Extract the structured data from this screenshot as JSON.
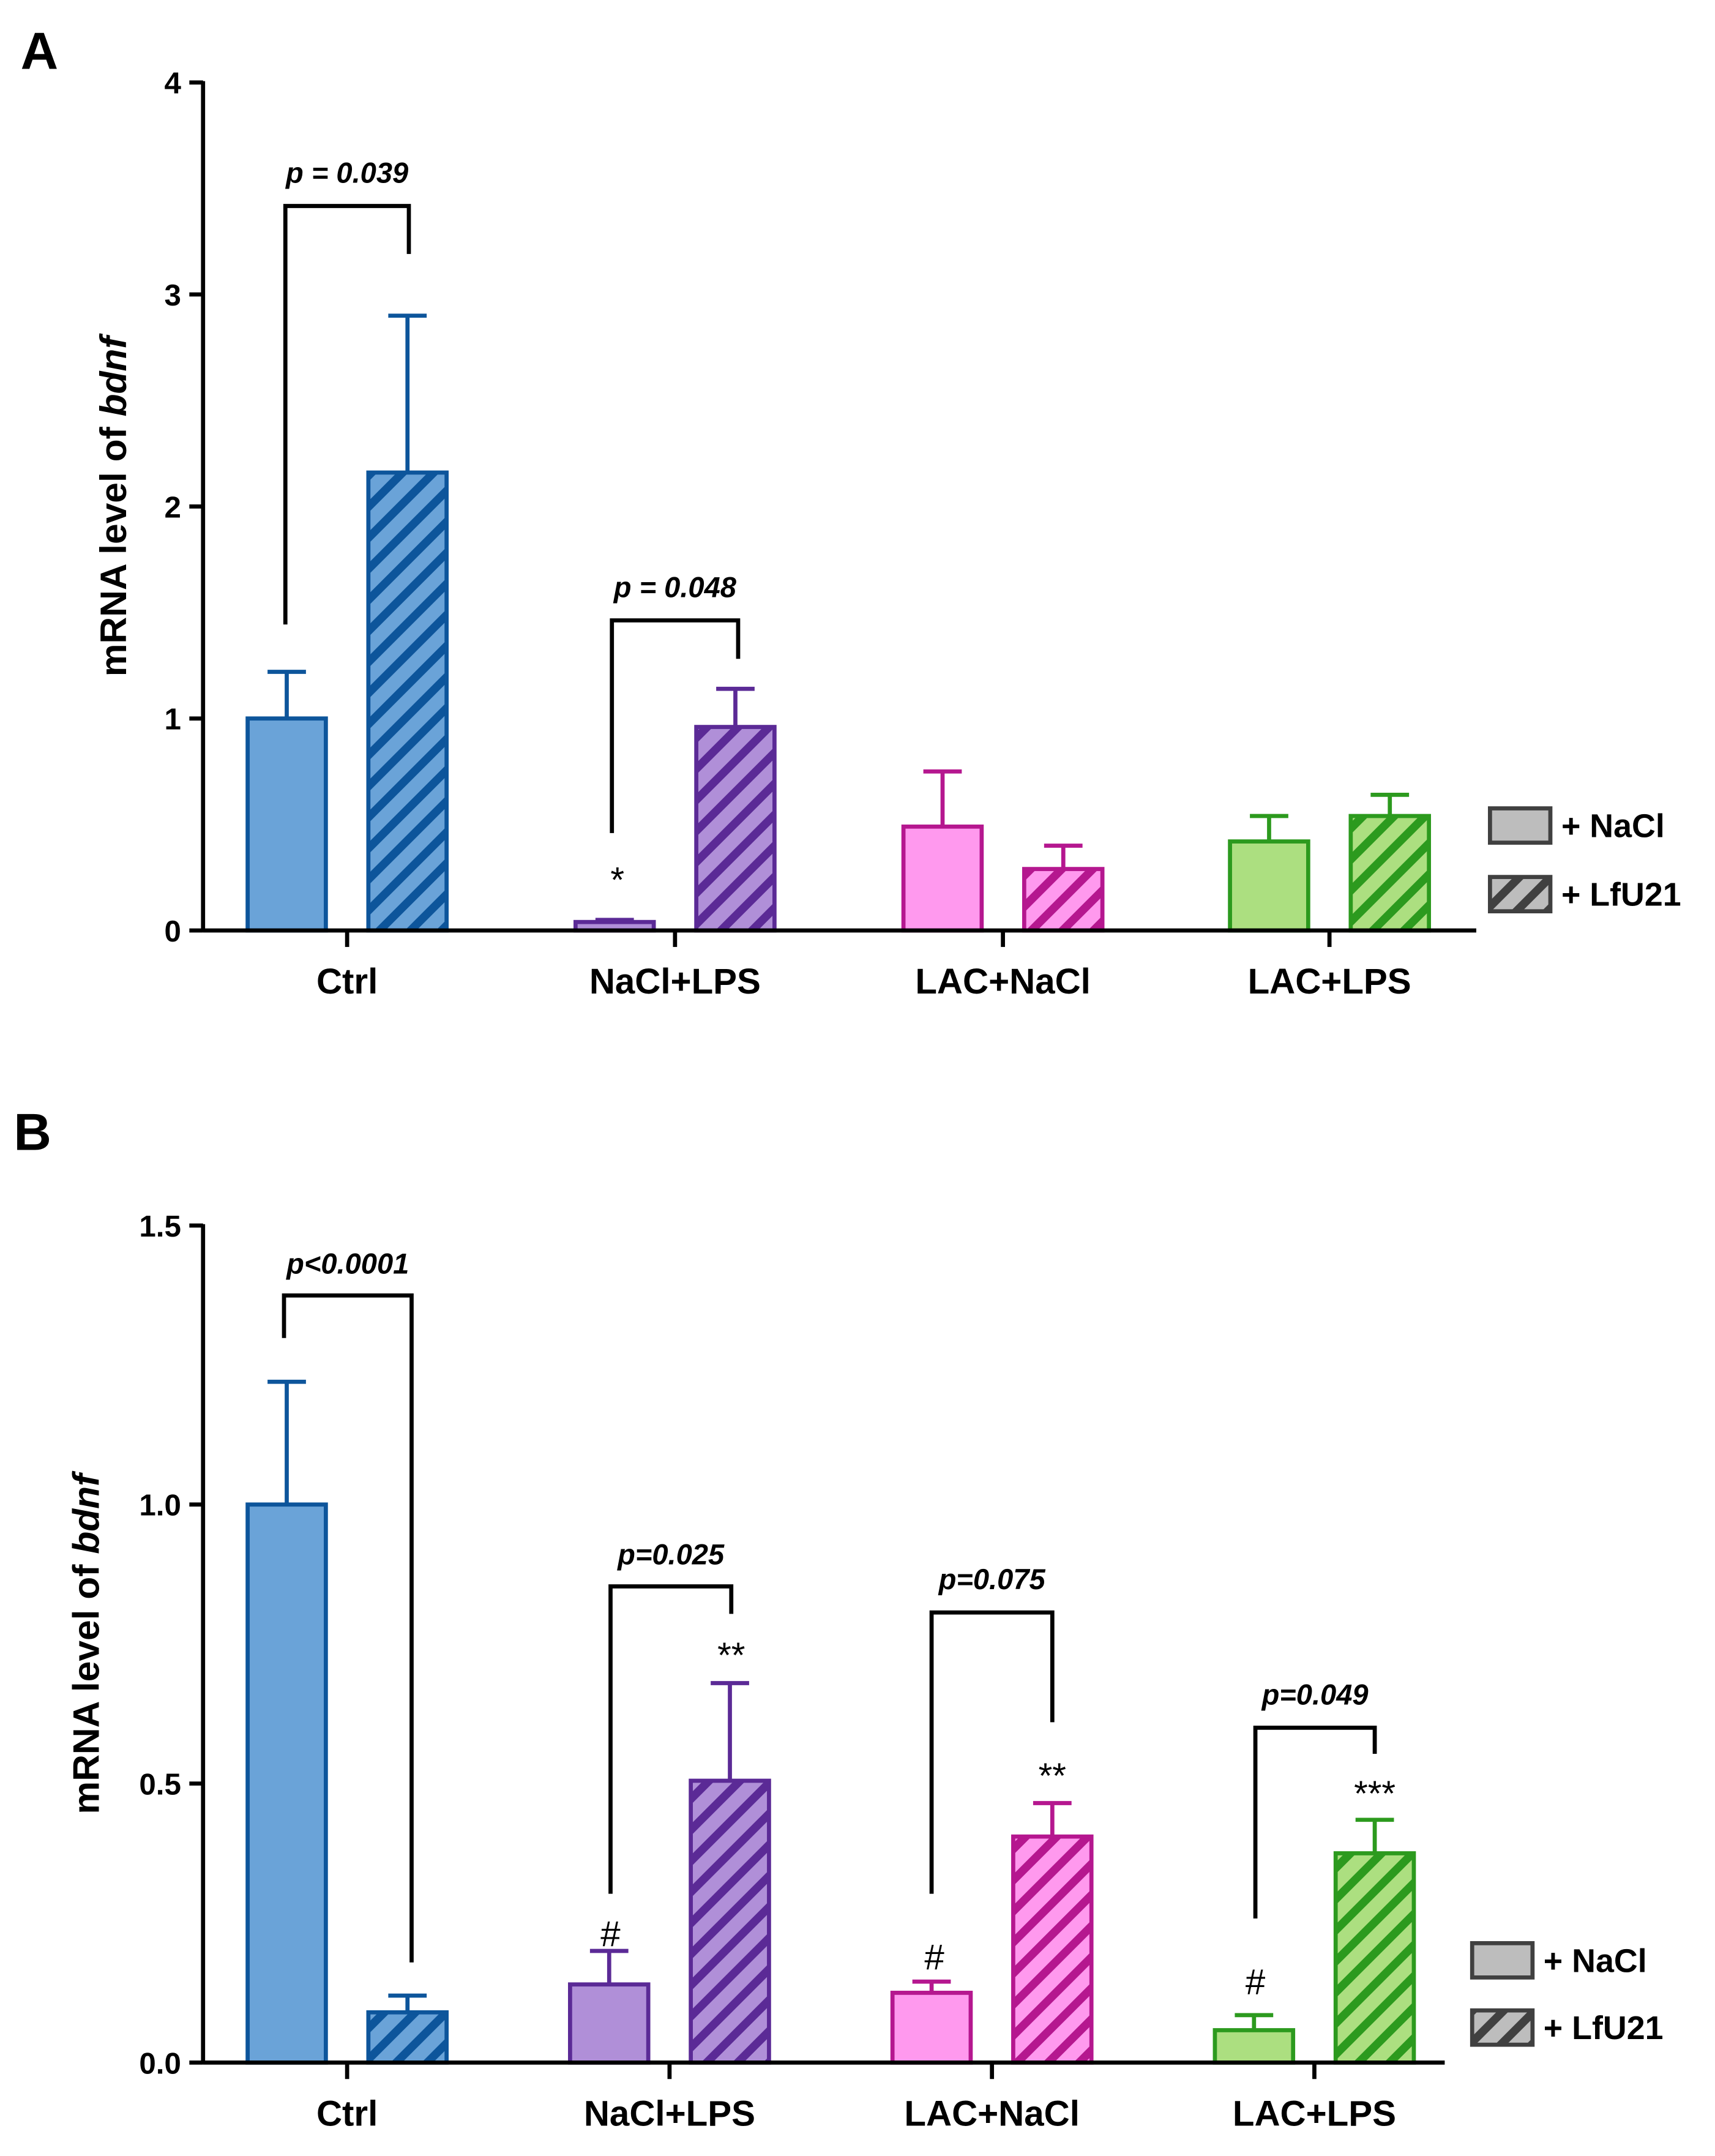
{
  "colors": {
    "Ctrl": {
      "fill": "#6aa3d8",
      "stroke": "#0d559b"
    },
    "NaCl+LPS": {
      "fill": "#b08fd8",
      "stroke": "#5b2a96"
    },
    "LAC+NaCl": {
      "fill": "#ff99ee",
      "stroke": "#b5178f"
    },
    "LAC+LPS": {
      "fill": "#acdf80",
      "stroke": "#2c9a1e"
    },
    "legend": {
      "fill": "#bdbdbd",
      "stroke": "#404040"
    }
  },
  "chart_data": [
    {
      "panel": "A",
      "type": "bar",
      "categories": [
        "Ctrl",
        "NaCl+LPS",
        "LAC+NaCl",
        "LAC+LPS"
      ],
      "ylabel": {
        "text": "mRNA level of ",
        "italic": "bdnf"
      },
      "ylim": [
        0,
        4
      ],
      "yticks": [
        "0",
        "1",
        "2",
        "3",
        "4"
      ],
      "legend": [
        "+ NaCl",
        "+ LfU21"
      ],
      "legend_position": "right",
      "series": [
        {
          "name": "+ NaCl",
          "pattern": "solid",
          "values": [
            1.0,
            0.04,
            0.49,
            0.42
          ],
          "error_upper": [
            1.22,
            0.05,
            0.75,
            0.54
          ]
        },
        {
          "name": "+ LfU21",
          "pattern": "hatched",
          "values": [
            2.16,
            0.96,
            0.29,
            0.54
          ],
          "error_upper": [
            2.9,
            1.14,
            0.4,
            0.64
          ]
        }
      ],
      "comparisons": [
        {
          "category": "Ctrl",
          "label": "p = 0.039"
        },
        {
          "category": "NaCl+LPS",
          "label": "p = 0.048"
        }
      ],
      "annotations": [
        {
          "category": "NaCl+LPS",
          "series": "+ NaCl",
          "text": "*"
        }
      ]
    },
    {
      "panel": "B",
      "type": "bar",
      "categories": [
        "Ctrl",
        "NaCl+LPS",
        "LAC+NaCl",
        "LAC+LPS"
      ],
      "ylabel": {
        "text": "mRNA level of ",
        "italic": "bdnf"
      },
      "ylim": [
        0,
        1.5
      ],
      "yticks": [
        "0.0",
        "0.5",
        "1.0",
        "1.5"
      ],
      "legend": [
        "+ NaCl",
        "+ LfU21"
      ],
      "legend_position": "right",
      "series": [
        {
          "name": "+ NaCl",
          "pattern": "solid",
          "values": [
            1.0,
            0.14,
            0.125,
            0.058
          ],
          "error_upper": [
            1.22,
            0.2,
            0.145,
            0.085
          ]
        },
        {
          "name": "+ LfU21",
          "pattern": "hatched",
          "values": [
            0.09,
            0.505,
            0.405,
            0.375
          ],
          "error_upper": [
            0.12,
            0.68,
            0.465,
            0.435
          ]
        }
      ],
      "comparisons": [
        {
          "category": "Ctrl",
          "label": "p<0.0001"
        },
        {
          "category": "NaCl+LPS",
          "label": "p=0.025"
        },
        {
          "category": "LAC+NaCl",
          "label": "p=0.075"
        },
        {
          "category": "LAC+LPS",
          "label": "p=0.049"
        }
      ],
      "annotations": [
        {
          "category": "NaCl+LPS",
          "series": "+ NaCl",
          "text": "#"
        },
        {
          "category": "NaCl+LPS",
          "series": "+ LfU21",
          "text": "**"
        },
        {
          "category": "LAC+NaCl",
          "series": "+ NaCl",
          "text": "#"
        },
        {
          "category": "LAC+NaCl",
          "series": "+ LfU21",
          "text": "**"
        },
        {
          "category": "LAC+LPS",
          "series": "+ NaCl",
          "text": "#"
        },
        {
          "category": "LAC+LPS",
          "series": "+ LfU21",
          "text": "***"
        }
      ]
    }
  ]
}
